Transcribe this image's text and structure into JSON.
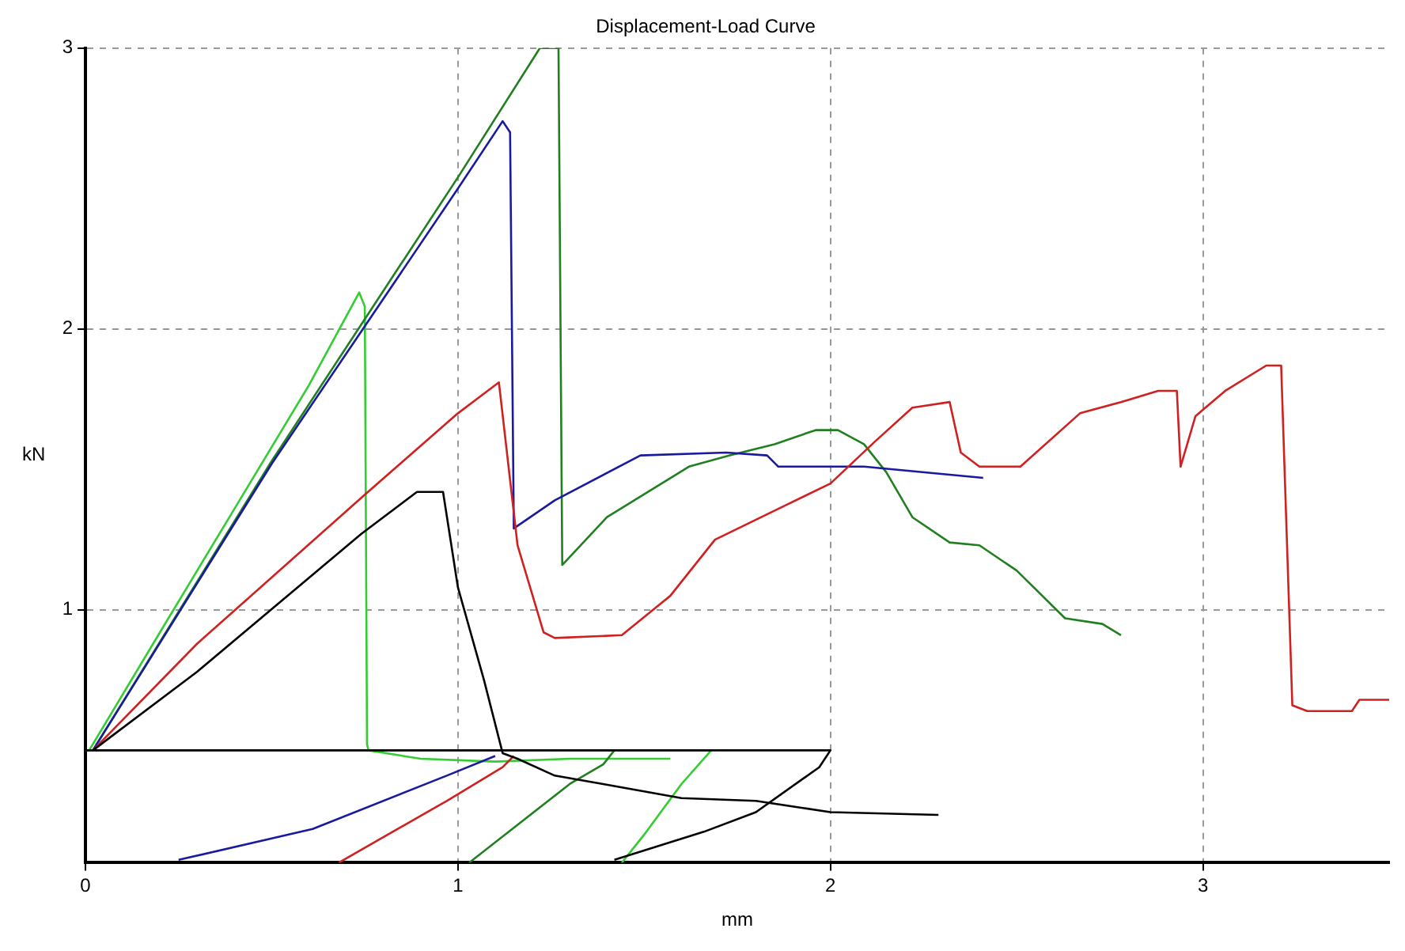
{
  "chart_data": {
    "type": "line",
    "title": "Displacement-Load Curve",
    "xlabel": "mm",
    "ylabel": "kN",
    "xlim": [
      0,
      3.5
    ],
    "ylim": [
      0.1,
      3
    ],
    "xticks": [
      0,
      1,
      2,
      3
    ],
    "yticks": [
      1,
      2,
      3
    ],
    "grid": true,
    "legend": false,
    "marker": "none",
    "line_style": "solid",
    "series": [
      {
        "color": "#000000",
        "x": [
          0.02,
          0.3,
          0.74,
          0.89,
          0.96,
          1.0,
          1.07,
          1.12,
          1.16,
          1.26,
          1.39,
          1.6,
          1.8,
          2.0,
          2.29,
          null,
          1.42,
          1.66,
          1.8,
          1.97,
          2.0,
          0
        ],
        "values": [
          0.5,
          0.78,
          1.27,
          1.42,
          1.42,
          1.08,
          0.75,
          0.49,
          0.47,
          0.41,
          0.38,
          0.33,
          0.32,
          0.28,
          0.27,
          null,
          0.11,
          0.21,
          0.28,
          0.44,
          0.5,
          0.5
        ]
      },
      {
        "color": "#d02020",
        "x": [
          0.02,
          0.3,
          0.75,
          1.0,
          1.11,
          1.16,
          1.23,
          1.26,
          1.44,
          1.57,
          1.69,
          1.86,
          2.0,
          2.12,
          2.22,
          2.32,
          2.35,
          2.4,
          2.51,
          2.67,
          2.78,
          2.88,
          2.93,
          2.94,
          2.98,
          3.06,
          3.17,
          3.21,
          3.24,
          3.28,
          3.4,
          3.42,
          3.5,
          null,
          0.68,
          0.97,
          1.12,
          1.15
        ],
        "values": [
          0.5,
          0.88,
          1.41,
          1.7,
          1.81,
          1.23,
          0.92,
          0.9,
          0.91,
          1.05,
          1.25,
          1.36,
          1.45,
          1.6,
          1.72,
          1.74,
          1.56,
          1.51,
          1.51,
          1.7,
          1.74,
          1.78,
          1.78,
          1.51,
          1.69,
          1.78,
          1.87,
          1.87,
          0.66,
          0.64,
          0.64,
          0.68,
          0.68,
          null,
          0.1,
          0.32,
          0.44,
          0.48
        ]
      },
      {
        "color": "#1a1aa0",
        "x": [
          0.02,
          0.5,
          1.0,
          1.12,
          1.14,
          1.15,
          1.26,
          1.49,
          1.72,
          1.83,
          1.86,
          2.09,
          2.41,
          null,
          0.25,
          0.61,
          0.97,
          1.1
        ],
        "values": [
          0.5,
          1.52,
          2.5,
          2.74,
          2.7,
          1.29,
          1.39,
          1.55,
          1.56,
          1.55,
          1.51,
          1.51,
          1.47,
          null,
          0.11,
          0.22,
          0.41,
          0.48
        ]
      },
      {
        "color": "#208020",
        "x": [
          0.02,
          0.5,
          1.0,
          1.22,
          1.27,
          1.28,
          1.4,
          1.62,
          1.73,
          1.85,
          1.96,
          2.02,
          2.09,
          2.15,
          2.22,
          2.32,
          2.4,
          2.5,
          2.63,
          2.73,
          2.78,
          null,
          1.03,
          1.3,
          1.39,
          1.42
        ],
        "values": [
          0.5,
          1.53,
          2.54,
          3.0,
          3.0,
          1.16,
          1.33,
          1.51,
          1.55,
          1.59,
          1.64,
          1.64,
          1.59,
          1.49,
          1.33,
          1.24,
          1.23,
          1.14,
          0.97,
          0.95,
          0.91,
          null,
          0.1,
          0.38,
          0.45,
          0.5
        ]
      },
      {
        "color": "#33cc33",
        "x": [
          0.01,
          0.2,
          0.4,
          0.6,
          0.735,
          0.75,
          0.756,
          0.76,
          0.9,
          1.1,
          1.3,
          1.57,
          null,
          1.44,
          1.5,
          1.6,
          1.68,
          0
        ],
        "values": [
          0.5,
          0.92,
          1.36,
          1.8,
          2.13,
          2.08,
          0.52,
          0.5,
          0.47,
          0.46,
          0.47,
          0.47,
          null,
          0.1,
          0.2,
          0.38,
          0.5,
          0.5
        ]
      }
    ]
  }
}
